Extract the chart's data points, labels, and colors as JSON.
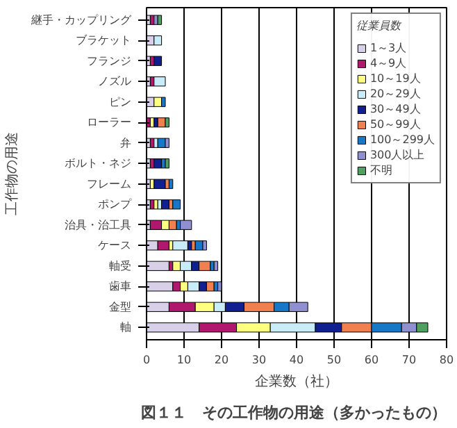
{
  "chart_data": {
    "type": "bar",
    "orientation": "horizontal",
    "stacked": true,
    "title": "図１１　その工作物の用途（多かったもの）",
    "xlabel": "企業数（社）",
    "ylabel": "工作物の用途",
    "legend_title": "従業員数",
    "legend": "top right",
    "grid": "x",
    "categories": [
      "継手・カップリング",
      "ブラケット",
      "フランジ",
      "ノズル",
      "ピン",
      "ローラー",
      "弁",
      "ボルト・ネジ",
      "フレーム",
      "ポンプ",
      "治具・治工具",
      "ケース",
      "軸受",
      "歯車",
      "金型",
      "軸"
    ],
    "xlim": [
      0,
      80
    ],
    "xticks": [
      0,
      10,
      20,
      30,
      40,
      50,
      60,
      70,
      80
    ],
    "series": [
      {
        "name": "1～3人",
        "color": "#d8d0e8",
        "values": [
          1,
          2,
          1,
          1,
          2,
          0,
          1,
          1,
          1,
          1,
          1,
          3,
          6,
          7,
          6,
          14
        ]
      },
      {
        "name": "4～9人",
        "color": "#b0186e",
        "values": [
          1,
          0,
          1,
          1,
          0,
          1,
          1,
          1,
          0,
          1,
          3,
          3,
          1,
          2,
          7,
          10
        ]
      },
      {
        "name": "10～19人",
        "color": "#ffff80",
        "values": [
          0,
          0,
          0,
          0,
          2,
          1,
          0,
          0,
          1,
          1,
          2,
          1,
          2,
          2,
          5,
          9
        ]
      },
      {
        "name": "20～29人",
        "color": "#c8ecf8",
        "values": [
          0,
          2,
          0,
          3,
          0,
          0,
          1,
          0,
          0,
          1,
          0,
          4,
          3,
          3,
          3,
          12
        ]
      },
      {
        "name": "30～49人",
        "color": "#102090",
        "values": [
          0,
          0,
          2,
          0,
          0,
          1,
          0,
          2,
          3,
          2,
          0,
          1,
          2,
          2,
          5,
          7
        ]
      },
      {
        "name": "50～99人",
        "color": "#f08050",
        "values": [
          0,
          0,
          0,
          0,
          0,
          2,
          0,
          0,
          1,
          1,
          2,
          1,
          3,
          2,
          8,
          8
        ]
      },
      {
        "name": "100～299人",
        "color": "#1878c8",
        "values": [
          0,
          0,
          0,
          0,
          1,
          0,
          2,
          1,
          1,
          2,
          1,
          2,
          1,
          1,
          4,
          8
        ]
      },
      {
        "name": "300人以上",
        "color": "#9090d0",
        "values": [
          1,
          0,
          0,
          0,
          0,
          0,
          1,
          0,
          0,
          0,
          3,
          1,
          1,
          1,
          5,
          4
        ]
      },
      {
        "name": "不明",
        "color": "#50a060",
        "values": [
          1,
          0,
          0,
          0,
          0,
          1,
          0,
          1,
          0,
          0,
          0,
          0,
          0,
          0,
          0,
          3
        ]
      }
    ]
  }
}
